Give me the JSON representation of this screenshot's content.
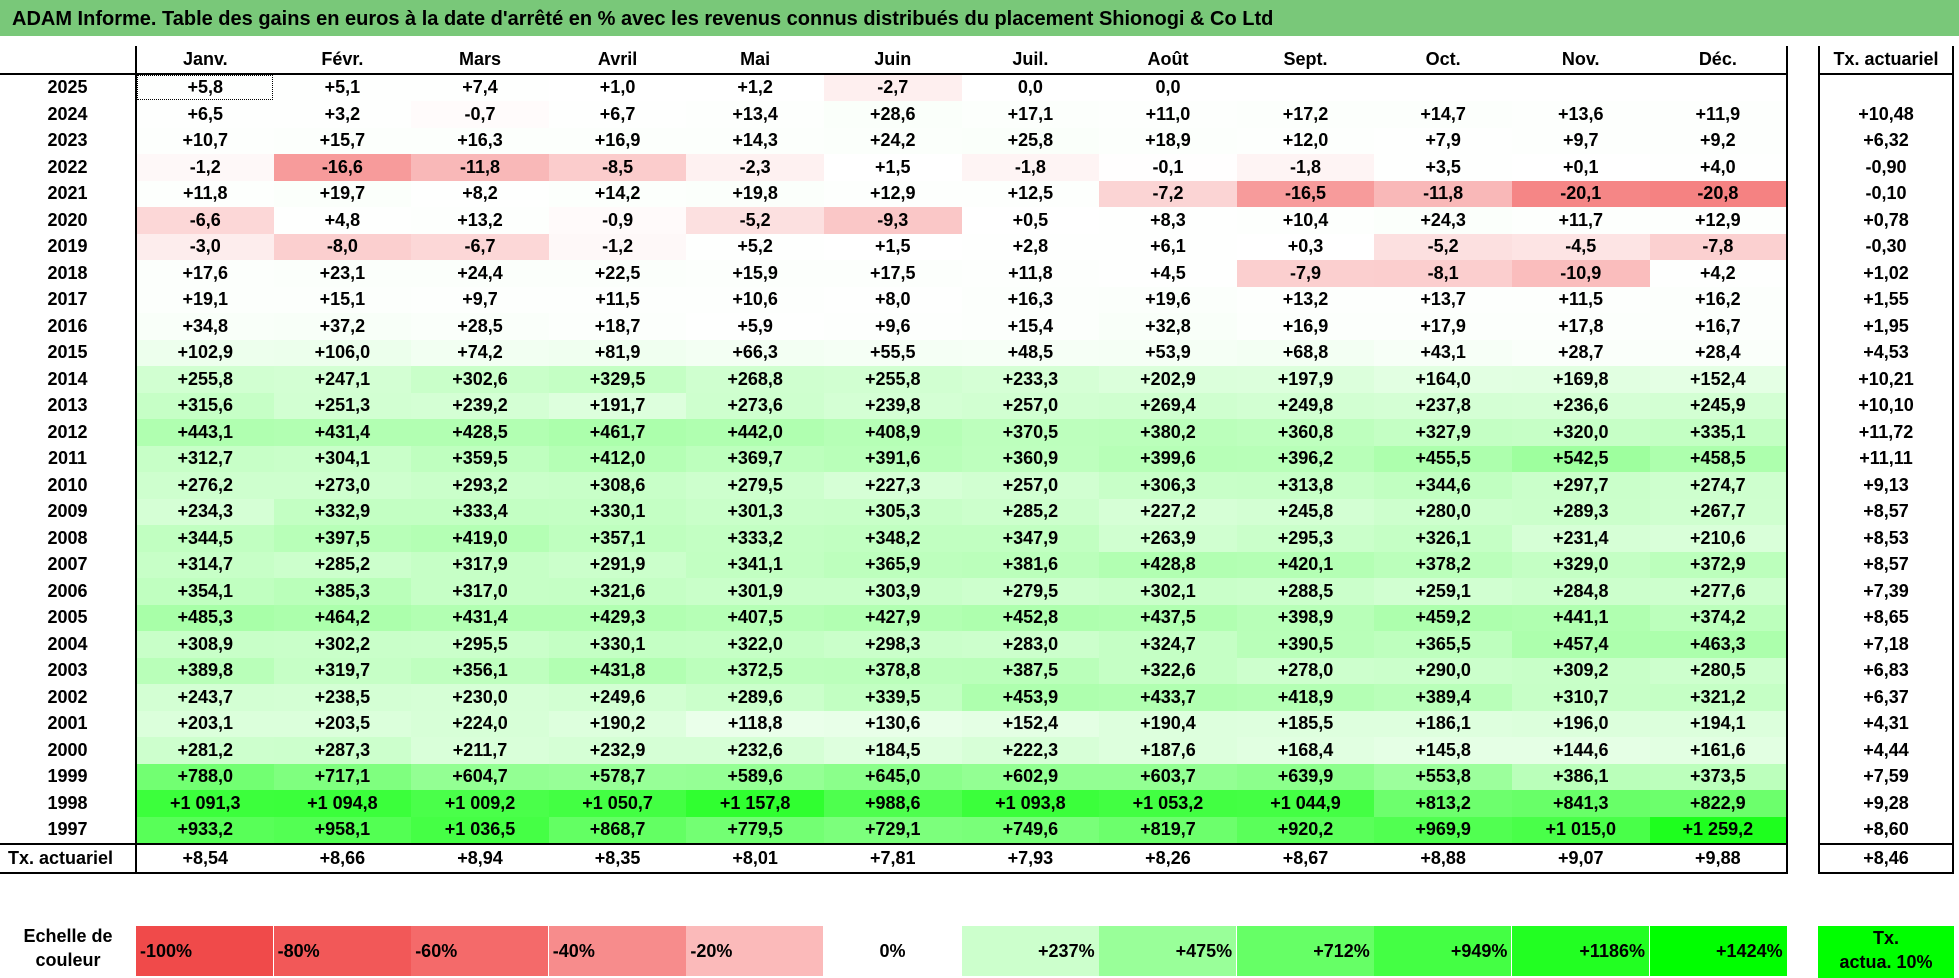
{
  "title": "ADAM Informe. Table des gains en euros à la date d'arrêté en % avec les revenus connus distribués du placement Shionogi & Co Ltd",
  "months": [
    "Janv.",
    "Févr.",
    "Mars",
    "Avril",
    "Mai",
    "Juin",
    "Juil.",
    "Août",
    "Sept.",
    "Oct.",
    "Nov.",
    "Déc."
  ],
  "right_header": "Tx. actuariel",
  "rows": [
    {
      "year": "2025",
      "vals": [
        "+5,8",
        "+5,1",
        "+7,4",
        "+1,0",
        "+1,2",
        "-2,7",
        "0,0",
        "0,0",
        "",
        "",
        "",
        ""
      ],
      "rate": ""
    },
    {
      "year": "2024",
      "vals": [
        "+6,5",
        "+3,2",
        "-0,7",
        "+6,7",
        "+13,4",
        "+28,6",
        "+17,1",
        "+11,0",
        "+17,2",
        "+14,7",
        "+13,6",
        "+11,9"
      ],
      "rate": "+10,48"
    },
    {
      "year": "2023",
      "vals": [
        "+10,7",
        "+15,7",
        "+16,3",
        "+16,9",
        "+14,3",
        "+24,2",
        "+25,8",
        "+18,9",
        "+12,0",
        "+7,9",
        "+9,7",
        "+9,2"
      ],
      "rate": "+6,32"
    },
    {
      "year": "2022",
      "vals": [
        "-1,2",
        "-16,6",
        "-11,8",
        "-8,5",
        "-2,3",
        "+1,5",
        "-1,8",
        "-0,1",
        "-1,8",
        "+3,5",
        "+0,1",
        "+4,0"
      ],
      "rate": "-0,90"
    },
    {
      "year": "2021",
      "vals": [
        "+11,8",
        "+19,7",
        "+8,2",
        "+14,2",
        "+19,8",
        "+12,9",
        "+12,5",
        "-7,2",
        "-16,5",
        "-11,8",
        "-20,1",
        "-20,8"
      ],
      "rate": "-0,10"
    },
    {
      "year": "2020",
      "vals": [
        "-6,6",
        "+4,8",
        "+13,2",
        "-0,9",
        "-5,2",
        "-9,3",
        "+0,5",
        "+8,3",
        "+10,4",
        "+24,3",
        "+11,7",
        "+12,9"
      ],
      "rate": "+0,78"
    },
    {
      "year": "2019",
      "vals": [
        "-3,0",
        "-8,0",
        "-6,7",
        "-1,2",
        "+5,2",
        "+1,5",
        "+2,8",
        "+6,1",
        "+0,3",
        "-5,2",
        "-4,5",
        "-7,8"
      ],
      "rate": "-0,30"
    },
    {
      "year": "2018",
      "vals": [
        "+17,6",
        "+23,1",
        "+24,4",
        "+22,5",
        "+15,9",
        "+17,5",
        "+11,8",
        "+4,5",
        "-7,9",
        "-8,1",
        "-10,9",
        "+4,2"
      ],
      "rate": "+1,02"
    },
    {
      "year": "2017",
      "vals": [
        "+19,1",
        "+15,1",
        "+9,7",
        "+11,5",
        "+10,6",
        "+8,0",
        "+16,3",
        "+19,6",
        "+13,2",
        "+13,7",
        "+11,5",
        "+16,2"
      ],
      "rate": "+1,55"
    },
    {
      "year": "2016",
      "vals": [
        "+34,8",
        "+37,2",
        "+28,5",
        "+18,7",
        "+5,9",
        "+9,6",
        "+15,4",
        "+32,8",
        "+16,9",
        "+17,9",
        "+17,8",
        "+16,7"
      ],
      "rate": "+1,95"
    },
    {
      "year": "2015",
      "vals": [
        "+102,9",
        "+106,0",
        "+74,2",
        "+81,9",
        "+66,3",
        "+55,5",
        "+48,5",
        "+53,9",
        "+68,8",
        "+43,1",
        "+28,7",
        "+28,4"
      ],
      "rate": "+4,53"
    },
    {
      "year": "2014",
      "vals": [
        "+255,8",
        "+247,1",
        "+302,6",
        "+329,5",
        "+268,8",
        "+255,8",
        "+233,3",
        "+202,9",
        "+197,9",
        "+164,0",
        "+169,8",
        "+152,4"
      ],
      "rate": "+10,21"
    },
    {
      "year": "2013",
      "vals": [
        "+315,6",
        "+251,3",
        "+239,2",
        "+191,7",
        "+273,6",
        "+239,8",
        "+257,0",
        "+269,4",
        "+249,8",
        "+237,8",
        "+236,6",
        "+245,9"
      ],
      "rate": "+10,10"
    },
    {
      "year": "2012",
      "vals": [
        "+443,1",
        "+431,4",
        "+428,5",
        "+461,7",
        "+442,0",
        "+408,9",
        "+370,5",
        "+380,2",
        "+360,8",
        "+327,9",
        "+320,0",
        "+335,1"
      ],
      "rate": "+11,72"
    },
    {
      "year": "2011",
      "vals": [
        "+312,7",
        "+304,1",
        "+359,5",
        "+412,0",
        "+369,7",
        "+391,6",
        "+360,9",
        "+399,6",
        "+396,2",
        "+455,5",
        "+542,5",
        "+458,5"
      ],
      "rate": "+11,11"
    },
    {
      "year": "2010",
      "vals": [
        "+276,2",
        "+273,0",
        "+293,2",
        "+308,6",
        "+279,5",
        "+227,3",
        "+257,0",
        "+306,3",
        "+313,8",
        "+344,6",
        "+297,7",
        "+274,7"
      ],
      "rate": "+9,13"
    },
    {
      "year": "2009",
      "vals": [
        "+234,3",
        "+332,9",
        "+333,4",
        "+330,1",
        "+301,3",
        "+305,3",
        "+285,2",
        "+227,2",
        "+245,8",
        "+280,0",
        "+289,3",
        "+267,7"
      ],
      "rate": "+8,57"
    },
    {
      "year": "2008",
      "vals": [
        "+344,5",
        "+397,5",
        "+419,0",
        "+357,1",
        "+333,2",
        "+348,2",
        "+347,9",
        "+263,9",
        "+295,3",
        "+326,1",
        "+231,4",
        "+210,6"
      ],
      "rate": "+8,53"
    },
    {
      "year": "2007",
      "vals": [
        "+314,7",
        "+285,2",
        "+317,9",
        "+291,9",
        "+341,1",
        "+365,9",
        "+381,6",
        "+428,8",
        "+420,1",
        "+378,2",
        "+329,0",
        "+372,9"
      ],
      "rate": "+8,57"
    },
    {
      "year": "2006",
      "vals": [
        "+354,1",
        "+385,3",
        "+317,0",
        "+321,6",
        "+301,9",
        "+303,9",
        "+279,5",
        "+302,1",
        "+288,5",
        "+259,1",
        "+284,8",
        "+277,6"
      ],
      "rate": "+7,39"
    },
    {
      "year": "2005",
      "vals": [
        "+485,3",
        "+464,2",
        "+431,4",
        "+429,3",
        "+407,5",
        "+427,9",
        "+452,8",
        "+437,5",
        "+398,9",
        "+459,2",
        "+441,1",
        "+374,2"
      ],
      "rate": "+8,65"
    },
    {
      "year": "2004",
      "vals": [
        "+308,9",
        "+302,2",
        "+295,5",
        "+330,1",
        "+322,0",
        "+298,3",
        "+283,0",
        "+324,7",
        "+390,5",
        "+365,5",
        "+457,4",
        "+463,3"
      ],
      "rate": "+7,18"
    },
    {
      "year": "2003",
      "vals": [
        "+389,8",
        "+319,7",
        "+356,1",
        "+431,8",
        "+372,5",
        "+378,8",
        "+387,5",
        "+322,6",
        "+278,0",
        "+290,0",
        "+309,2",
        "+280,5"
      ],
      "rate": "+6,83"
    },
    {
      "year": "2002",
      "vals": [
        "+243,7",
        "+238,5",
        "+230,0",
        "+249,6",
        "+289,6",
        "+339,5",
        "+453,9",
        "+433,7",
        "+418,9",
        "+389,4",
        "+310,7",
        "+321,2"
      ],
      "rate": "+6,37"
    },
    {
      "year": "2001",
      "vals": [
        "+203,1",
        "+203,5",
        "+224,0",
        "+190,2",
        "+118,8",
        "+130,6",
        "+152,4",
        "+190,4",
        "+185,5",
        "+186,1",
        "+196,0",
        "+194,1"
      ],
      "rate": "+4,31"
    },
    {
      "year": "2000",
      "vals": [
        "+281,2",
        "+287,3",
        "+211,7",
        "+232,9",
        "+232,6",
        "+184,5",
        "+222,3",
        "+187,6",
        "+168,4",
        "+145,8",
        "+144,6",
        "+161,6"
      ],
      "rate": "+4,44"
    },
    {
      "year": "1999",
      "vals": [
        "+788,0",
        "+717,1",
        "+604,7",
        "+578,7",
        "+589,6",
        "+645,0",
        "+602,9",
        "+603,7",
        "+639,9",
        "+553,8",
        "+386,1",
        "+373,5"
      ],
      "rate": "+7,59"
    },
    {
      "year": "1998",
      "vals": [
        "+1 091,3",
        "+1 094,8",
        "+1 009,2",
        "+1 050,7",
        "+1 157,8",
        "+988,6",
        "+1 093,8",
        "+1 053,2",
        "+1 044,9",
        "+813,2",
        "+841,3",
        "+822,9"
      ],
      "rate": "+9,28"
    },
    {
      "year": "1997",
      "vals": [
        "+933,2",
        "+958,1",
        "+1 036,5",
        "+868,7",
        "+779,5",
        "+729,1",
        "+749,6",
        "+819,7",
        "+920,2",
        "+969,9",
        "+1 015,0",
        "+1 259,2"
      ],
      "rate": "+8,60"
    }
  ],
  "annual": {
    "label": "Tx. actuariel",
    "vals": [
      "+8,54",
      "+8,66",
      "+8,94",
      "+8,35",
      "+8,01",
      "+7,81",
      "+7,93",
      "+8,26",
      "+8,67",
      "+8,88",
      "+9,07",
      "+9,88"
    ],
    "total": "+8,46"
  },
  "legend": {
    "label": "Echelle de\ncouleur",
    "swatches": [
      {
        "text": "-100%",
        "color": "#f04a4a",
        "kind": "neg"
      },
      {
        "text": "-80%",
        "color": "#f25858",
        "kind": "neg"
      },
      {
        "text": "-60%",
        "color": "#f46a6a",
        "kind": "neg"
      },
      {
        "text": "-40%",
        "color": "#f78c8c",
        "kind": "neg"
      },
      {
        "text": "-20%",
        "color": "#fbbaba",
        "kind": "neg"
      },
      {
        "text": "0%",
        "color": "#ffffff",
        "kind": "zero"
      },
      {
        "text": "+237%",
        "color": "#ccffcc",
        "kind": "pos"
      },
      {
        "text": "+475%",
        "color": "#99ff99",
        "kind": "pos"
      },
      {
        "text": "+712%",
        "color": "#66ff66",
        "kind": "pos"
      },
      {
        "text": "+949%",
        "color": "#44ff44",
        "kind": "pos"
      },
      {
        "text": "+1186%",
        "color": "#22ff22",
        "kind": "pos"
      },
      {
        "text": "+1424%",
        "color": "#00ff00",
        "kind": "pos"
      }
    ],
    "actuarial": "Tx.\nactua. 10%"
  },
  "colors": {
    "title_bg": "#79c879",
    "positive_max": "#00ff00",
    "negative_max": "#f04a4a"
  }
}
